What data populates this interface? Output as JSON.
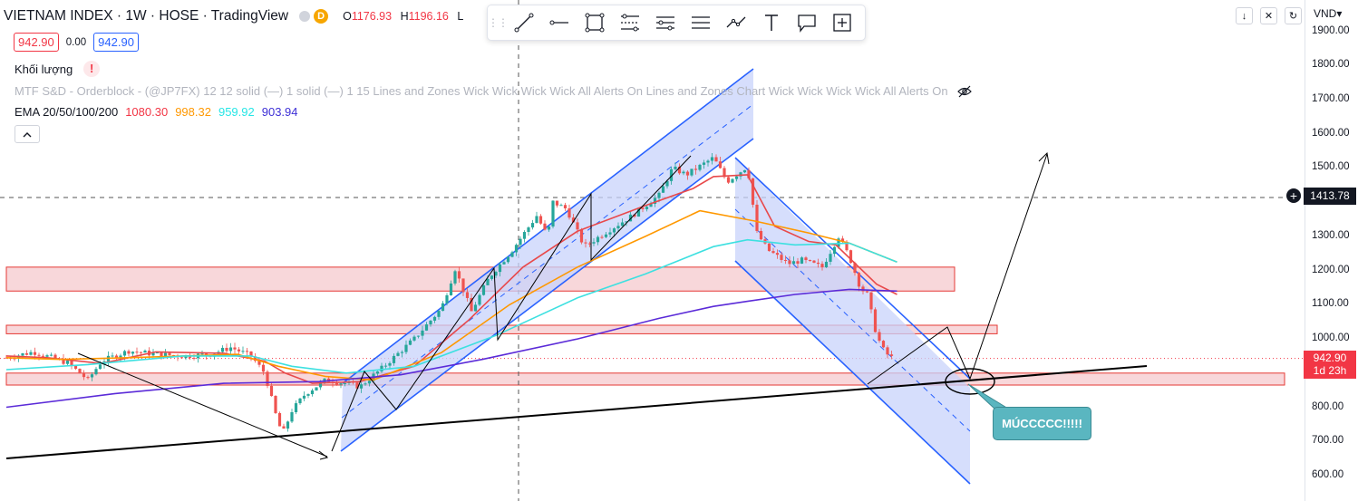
{
  "legend": {
    "title": "VIETNAM INDEX · 1W · HOSE · TradingView",
    "badge_letter": "D",
    "ohlc": [
      {
        "k": "O",
        "v": "1176.93"
      },
      {
        "k": "H",
        "v": "1196.16"
      },
      {
        "k": "L",
        "v": ""
      }
    ],
    "bid": "942.90",
    "spread": "0.00",
    "ask": "942.90",
    "volume_label": "Khối lượng",
    "volume_warning": "!",
    "mtf_label": "MTF S&D - Orderblock - (@JP7FX) 12 12 solid (—) 1 solid (—) 1 15 Lines and Zones Wick Wick Wick Wick All Alerts On Lines and Zones Chart Wick Wick Wick Wick All Alerts On",
    "ema_label": "EMA 20/50/100/200",
    "ema_values": [
      {
        "value": "1080.30",
        "color": "#f23645"
      },
      {
        "value": "998.32",
        "color": "#ff9800"
      },
      {
        "value": "959.92",
        "color": "#26e6e6"
      },
      {
        "value": "903.94",
        "color": "#3d2fd6"
      }
    ],
    "collapse_glyph": "^"
  },
  "toolbar": {
    "grip": "⋮⋮",
    "tools": [
      "trend-line-icon",
      "horizontal-ray-icon",
      "rectangle-icon",
      "fib-retracement-icon",
      "parallel-channel-icon",
      "horizontal-lines-icon",
      "path-icon",
      "text-icon",
      "callout-icon",
      "select-area-icon"
    ]
  },
  "top_right": {
    "buttons": [
      {
        "name": "scroll-down-icon",
        "glyph": "↓"
      },
      {
        "name": "close-icon",
        "glyph": "✕"
      },
      {
        "name": "reload-icon",
        "glyph": "↻"
      }
    ],
    "currency": "VND▾"
  },
  "axis": {
    "ticks": [
      "1900.00",
      "1800.00",
      "1700.00",
      "1600.00",
      "1500.00",
      "1400.00",
      "1300.00",
      "1200.00",
      "1100.00",
      "1000.00",
      "900.00",
      "800.00",
      "700.00",
      "600.00"
    ],
    "crosshair_price": "1413.78",
    "crosshair_plus": "+",
    "last_price": "942.90",
    "countdown": "1d 23h"
  },
  "callout_text": "MÚCCCCC!!!!!",
  "colors": {
    "up": "#26a69a",
    "down": "#ef5350",
    "zone_fill": "#f5c6cb",
    "zone_stroke": "#e53935",
    "channel": "#2962ff",
    "channel_fill": "#c8d3fb"
  },
  "chart_data": {
    "type": "candlestick",
    "title": "VIETNAM INDEX · 1W · HOSE",
    "ylim": [
      575,
      1950
    ],
    "y_ticks": [
      600,
      700,
      800,
      900,
      1000,
      1100,
      1200,
      1300,
      1400,
      1500,
      1600,
      1700,
      1800,
      1900
    ],
    "last_close": 942.9,
    "close_path": [
      [
        0,
        945
      ],
      [
        20,
        962
      ],
      [
        45,
        930
      ],
      [
        60,
        880
      ],
      [
        70,
        935
      ],
      [
        90,
        965
      ],
      [
        110,
        955
      ],
      [
        130,
        950
      ],
      [
        150,
        955
      ],
      [
        165,
        975
      ],
      [
        180,
        950
      ],
      [
        190,
        900
      ],
      [
        198,
        780
      ],
      [
        203,
        720
      ],
      [
        210,
        790
      ],
      [
        220,
        840
      ],
      [
        235,
        880
      ],
      [
        250,
        870
      ],
      [
        260,
        860
      ],
      [
        275,
        910
      ],
      [
        300,
        1000
      ],
      [
        320,
        1090
      ],
      [
        330,
        1205
      ],
      [
        342,
        1080
      ],
      [
        355,
        1180
      ],
      [
        372,
        1260
      ],
      [
        390,
        1360
      ],
      [
        398,
        1300
      ],
      [
        402,
        1400
      ],
      [
        412,
        1380
      ],
      [
        425,
        1270
      ],
      [
        440,
        1310
      ],
      [
        460,
        1360
      ],
      [
        480,
        1420
      ],
      [
        490,
        1500
      ],
      [
        500,
        1480
      ],
      [
        520,
        1530
      ],
      [
        530,
        1460
      ],
      [
        545,
        1505
      ],
      [
        548,
        1420
      ],
      [
        552,
        1310
      ],
      [
        560,
        1260
      ],
      [
        575,
        1220
      ],
      [
        585,
        1230
      ],
      [
        600,
        1210
      ],
      [
        612,
        1300
      ],
      [
        620,
        1240
      ],
      [
        628,
        1150
      ],
      [
        633,
        1130
      ],
      [
        640,
        1010
      ],
      [
        646,
        960
      ],
      [
        652,
        942.9
      ]
    ],
    "ema": [
      {
        "name": "EMA 20",
        "color": "#e8494b",
        "points": [
          [
            0,
            950
          ],
          [
            30,
            945
          ],
          [
            70,
            928
          ],
          [
            110,
            962
          ],
          [
            160,
            958
          ],
          [
            190,
            935
          ],
          [
            205,
            900
          ],
          [
            225,
            870
          ],
          [
            260,
            875
          ],
          [
            300,
            920
          ],
          [
            340,
            1055
          ],
          [
            380,
            1210
          ],
          [
            420,
            1315
          ],
          [
            470,
            1390
          ],
          [
            505,
            1440
          ],
          [
            520,
            1475
          ],
          [
            545,
            1480
          ],
          [
            565,
            1330
          ],
          [
            590,
            1285
          ],
          [
            610,
            1275
          ],
          [
            640,
            1160
          ],
          [
            655,
            1130
          ]
        ]
      },
      {
        "name": "EMA 50",
        "color": "#ff9800",
        "points": [
          [
            0,
            945
          ],
          [
            40,
            940
          ],
          [
            90,
            945
          ],
          [
            170,
            955
          ],
          [
            200,
            920
          ],
          [
            235,
            890
          ],
          [
            270,
            880
          ],
          [
            320,
            960
          ],
          [
            370,
            1100
          ],
          [
            420,
            1210
          ],
          [
            470,
            1300
          ],
          [
            510,
            1375
          ],
          [
            550,
            1345
          ],
          [
            590,
            1310
          ],
          [
            620,
            1280
          ],
          [
            655,
            1225
          ]
        ]
      },
      {
        "name": "EMA 100",
        "color": "#3de0e0",
        "points": [
          [
            0,
            910
          ],
          [
            60,
            925
          ],
          [
            130,
            950
          ],
          [
            180,
            950
          ],
          [
            210,
            920
          ],
          [
            250,
            900
          ],
          [
            300,
            920
          ],
          [
            360,
            1010
          ],
          [
            420,
            1120
          ],
          [
            470,
            1190
          ],
          [
            520,
            1270
          ],
          [
            545,
            1290
          ],
          [
            580,
            1275
          ],
          [
            620,
            1280
          ],
          [
            655,
            1225
          ]
        ]
      },
      {
        "name": "EMA 200",
        "color": "#5b2bd8",
        "points": [
          [
            0,
            800
          ],
          [
            80,
            840
          ],
          [
            160,
            870
          ],
          [
            230,
            875
          ],
          [
            290,
            895
          ],
          [
            350,
            940
          ],
          [
            420,
            1000
          ],
          [
            480,
            1060
          ],
          [
            520,
            1095
          ],
          [
            545,
            1110
          ],
          [
            580,
            1130
          ],
          [
            620,
            1145
          ],
          [
            655,
            1140
          ]
        ]
      }
    ],
    "zones": [
      {
        "y1": 1140,
        "y2": 1210
      },
      {
        "y1": 1015,
        "y2": 1040
      },
      {
        "y1": 865,
        "y2": 900
      }
    ],
    "notes": [
      "MÚCCCCC!!!!!"
    ]
  }
}
